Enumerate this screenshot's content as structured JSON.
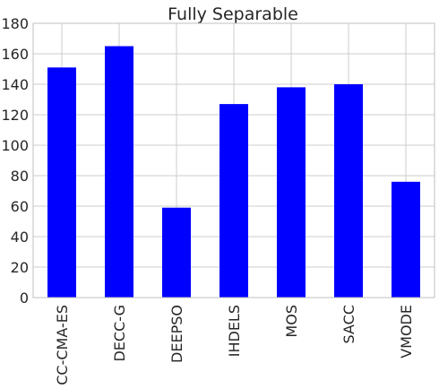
{
  "chart_data": {
    "type": "bar",
    "title": "Fully Separable",
    "xlabel": "",
    "ylabel": "",
    "categories": [
      "CC-CMA-ES",
      "DECC-G",
      "DEEPSO",
      "IHDELS",
      "MOS",
      "SACC",
      "VMODE"
    ],
    "values": [
      151,
      165,
      59,
      127,
      138,
      140,
      76
    ],
    "ylim": [
      0,
      180
    ],
    "yticks": [
      0,
      20,
      40,
      60,
      80,
      100,
      120,
      140,
      160,
      180
    ],
    "grid": true,
    "bar_color": "#0000ff",
    "grid_color": "#cccccc",
    "axes_edge_color": "#bfbfbf"
  }
}
